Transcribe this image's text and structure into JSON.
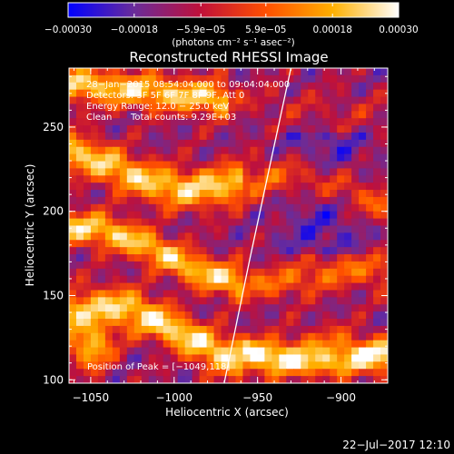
{
  "chart_data": {
    "type": "heatmap",
    "title": "Reconstructed RHESSI Image",
    "xlabel": "Heliocentric X (arcsec)",
    "ylabel": "Heliocentric Y (arcsec)",
    "xlim": [
      -1063,
      -872
    ],
    "ylim": [
      98,
      285
    ],
    "x_ticks": [
      -1050,
      -1000,
      -950,
      -900
    ],
    "x_tick_labels": [
      "−1050",
      "−1000",
      "−950",
      "−900"
    ],
    "y_ticks": [
      100,
      150,
      200,
      250
    ],
    "y_tick_labels": [
      "100",
      "150",
      "200",
      "250"
    ],
    "colorbar": {
      "range": [
        -0.0003,
        0.0003
      ],
      "tick_values": [
        -0.0003,
        -0.00018,
        -5.9e-05,
        5.9e-05,
        0.00018,
        0.0003
      ],
      "tick_labels": [
        "−0.00030",
        "−0.00018",
        "−5.9e−05",
        "5.9e−05",
        "0.00018",
        "0.00030"
      ],
      "unit_label": "(photons cm⁻² s⁻¹ asec⁻²)",
      "colors": [
        "#0000ff",
        "#6a2c9a",
        "#c0103a",
        "#ff5000",
        "#ffb000",
        "#ffffff"
      ]
    },
    "annotations": [
      "28−Jan−2015 08:54:04.000 to 09:04:04.000",
      "Detectors: 3F 5F 6F 7F 8F 9F, Att 0",
      "Energy Range: 12.0 − 25.0 keV",
      "Clean",
      "Total counts: 9.29E+03"
    ],
    "peak_label": "Position of Peak = [−1049,118]",
    "limb_points": [
      [
        -970,
        98
      ],
      [
        -955,
        170
      ],
      [
        -942,
        230
      ],
      [
        -930,
        285
      ]
    ],
    "grid": false
  },
  "footer": {
    "date": "22−Jul−2017 12:10"
  }
}
